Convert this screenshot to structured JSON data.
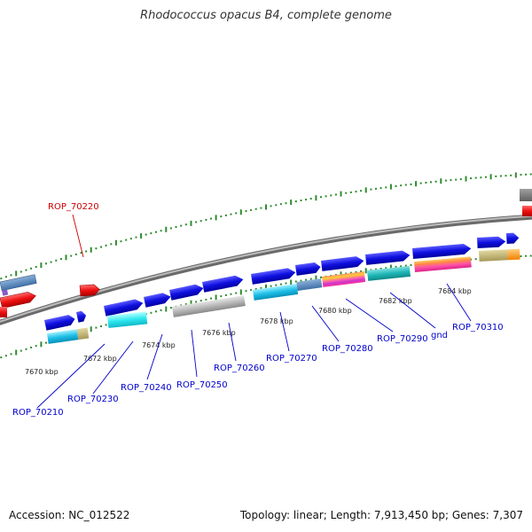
{
  "title": "Rhodococcus opacus B4, complete genome",
  "footer": {
    "accession": "Accession: NC_012522",
    "topology": "Topology: linear; Length: 7,913,450 bp; Genes: 7,307"
  },
  "colors": {
    "backbone": "#808080",
    "tick": "#2e8b2e",
    "label_blue": "#0000cc",
    "label_red": "#cc0000",
    "gene_blue": "#1010e0",
    "gene_red": "#ee1111",
    "gene_cyan": "#20c0e8",
    "gene_grey": "#b0b0b0"
  },
  "scale_labels": [
    "7670 kbp",
    "7672 kbp",
    "7674 kbp",
    "7676 kbp",
    "7678 kbp",
    "7680 kbp",
    "7682 kbp",
    "7684 kbp"
  ],
  "gene_labels": [
    {
      "text": "ROP_70220",
      "color": "red"
    },
    {
      "text": "ROP_70210",
      "color": "blue"
    },
    {
      "text": "ROP_70230",
      "color": "blue"
    },
    {
      "text": "ROP_70240",
      "color": "blue"
    },
    {
      "text": "ROP_70250",
      "color": "blue"
    },
    {
      "text": "ROP_70260",
      "color": "blue"
    },
    {
      "text": "ROP_70270",
      "color": "blue"
    },
    {
      "text": "ROP_70280",
      "color": "blue"
    },
    {
      "text": "ROP_70290",
      "color": "blue"
    },
    {
      "text": "gnd",
      "color": "blue"
    },
    {
      "text": "ROP_70310",
      "color": "blue"
    }
  ]
}
